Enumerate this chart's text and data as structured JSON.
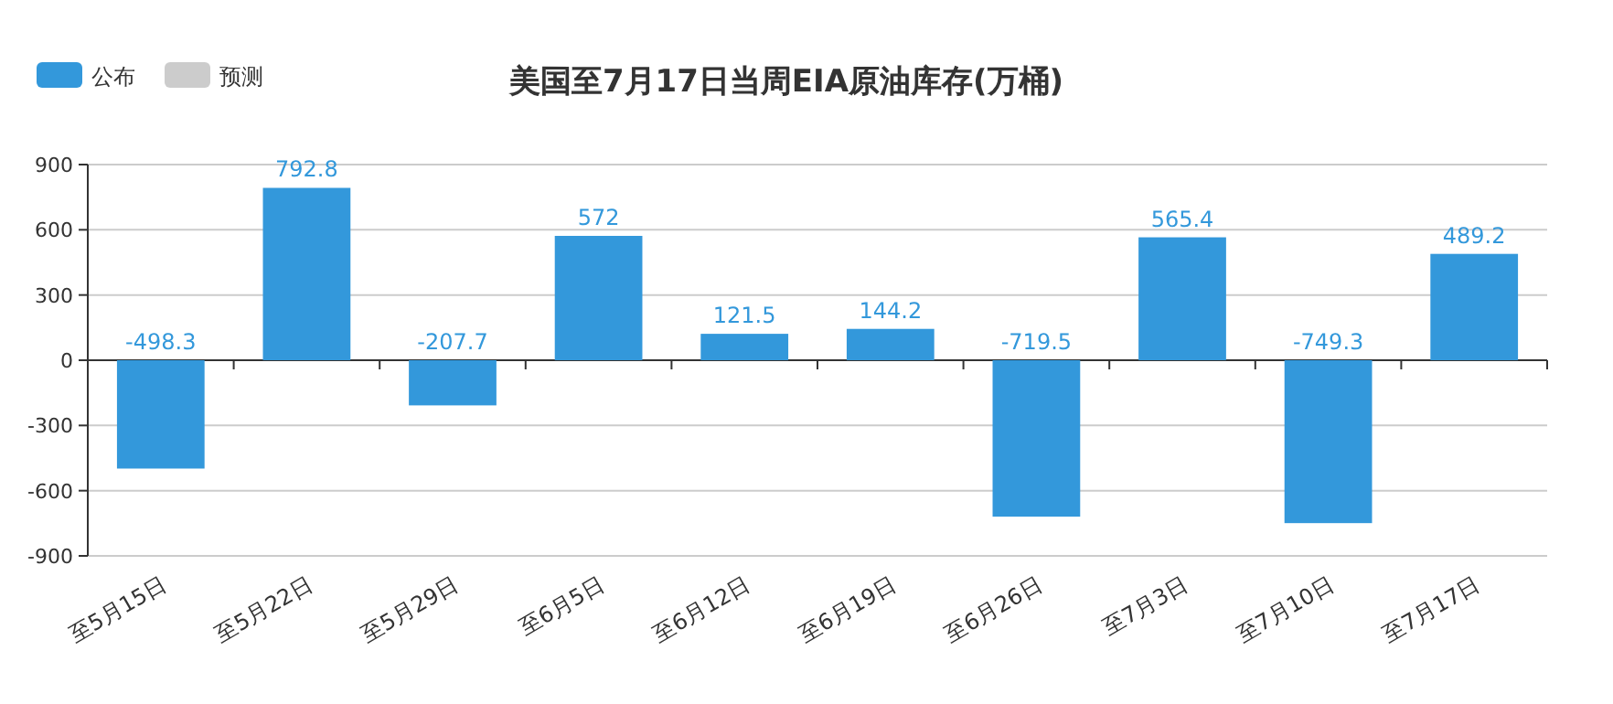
{
  "chart_data": {
    "type": "bar",
    "title": "美国至7月17日当周EIA原油库存(万桶)",
    "categories": [
      "至5月15日",
      "至5月22日",
      "至5月29日",
      "至6月5日",
      "至6月12日",
      "至6月19日",
      "至6月26日",
      "至7月3日",
      "至7月10日",
      "至7月17日"
    ],
    "series": [
      {
        "name": "公布",
        "color": "#3398db",
        "values": [
          -498.3,
          792.8,
          -207.7,
          572,
          121.5,
          144.2,
          -719.5,
          565.4,
          -749.3,
          489.2
        ]
      },
      {
        "name": "预测",
        "color": "#cccccc",
        "values": [
          null,
          null,
          null,
          null,
          null,
          null,
          null,
          null,
          null,
          null
        ]
      }
    ],
    "ylim": [
      -900,
      900
    ],
    "yticks": [
      -900,
      -600,
      -300,
      0,
      300,
      600,
      900
    ],
    "grid": "y",
    "legend": "top left",
    "data_labels": true
  }
}
